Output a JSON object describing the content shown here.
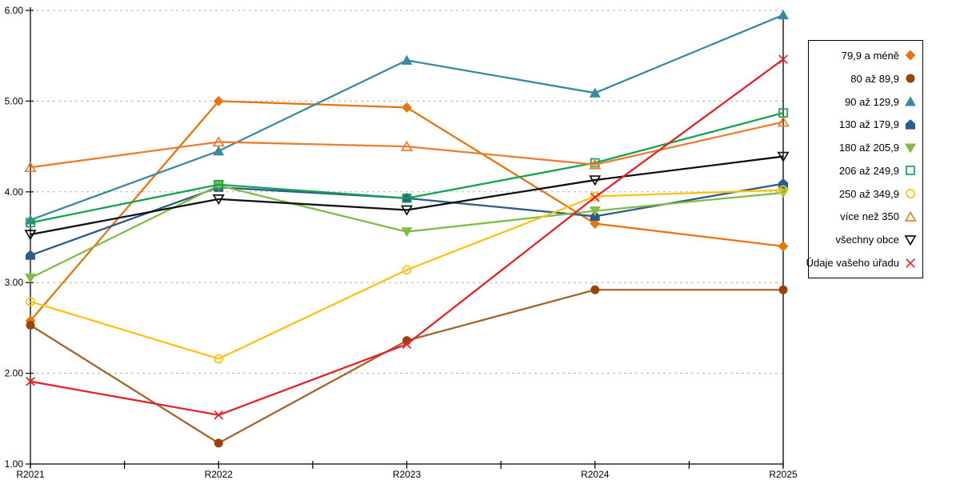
{
  "chart_data": {
    "type": "line",
    "title": "",
    "xlabel": "",
    "ylabel": "",
    "categories": [
      "R2021",
      "R2022",
      "R2023",
      "R2024",
      "R2025"
    ],
    "ylim": [
      1,
      6
    ],
    "ytick_labels": [
      "1.00",
      "2.00",
      "3.00",
      "4.00",
      "5.00",
      "6.00"
    ],
    "grid": "horizontal-dashed",
    "grid_color": "#b3b3b3",
    "axis_color": "#000000",
    "legend_position": "right",
    "series": [
      {
        "name": "79,9 a méně",
        "marker": "diamond",
        "fill": "filled",
        "color": "#e87511",
        "values": [
          2.58,
          5.0,
          4.93,
          3.65,
          3.4
        ]
      },
      {
        "name": "80 až 89,9",
        "marker": "circle",
        "fill": "filled",
        "color": "#9a430a",
        "line_color": "#a4652e",
        "values": [
          2.53,
          1.23,
          2.36,
          2.92,
          2.92
        ]
      },
      {
        "name": "90 až 129,9",
        "marker": "triangle-up",
        "fill": "filled",
        "color": "#3a89a0",
        "values": [
          3.69,
          4.45,
          5.45,
          5.09,
          5.95
        ]
      },
      {
        "name": "130 až 179,9",
        "marker": "pentagon",
        "fill": "filled",
        "color": "#2e5c8a",
        "values": [
          3.3,
          4.05,
          3.93,
          3.73,
          4.09
        ]
      },
      {
        "name": "180 až 205,9",
        "marker": "triangle-down",
        "fill": "filled",
        "color": "#82bb45",
        "values": [
          3.05,
          4.07,
          3.56,
          3.79,
          3.99
        ]
      },
      {
        "name": "206 až 249,9",
        "marker": "square",
        "fill": "open",
        "color": "#14a351",
        "values": [
          3.66,
          4.08,
          3.93,
          4.32,
          4.87
        ]
      },
      {
        "name": "250 až 349,9",
        "marker": "circle",
        "fill": "open",
        "color": "#ffc212",
        "values": [
          2.79,
          2.16,
          3.14,
          3.95,
          4.02
        ]
      },
      {
        "name": "více než 350",
        "marker": "triangle-up",
        "fill": "open",
        "color": "#ed7d2e",
        "values": [
          4.27,
          4.55,
          4.5,
          4.3,
          4.77
        ]
      },
      {
        "name": "všechny obce",
        "marker": "triangle-down",
        "fill": "open",
        "color": "#111111",
        "values": [
          3.53,
          3.92,
          3.8,
          4.13,
          4.39
        ]
      },
      {
        "name": "Údaje vašeho úřadu",
        "marker": "x-cross",
        "fill": "open",
        "color": "#e62328",
        "values": [
          1.91,
          1.54,
          2.32,
          3.94,
          5.46
        ]
      }
    ]
  }
}
